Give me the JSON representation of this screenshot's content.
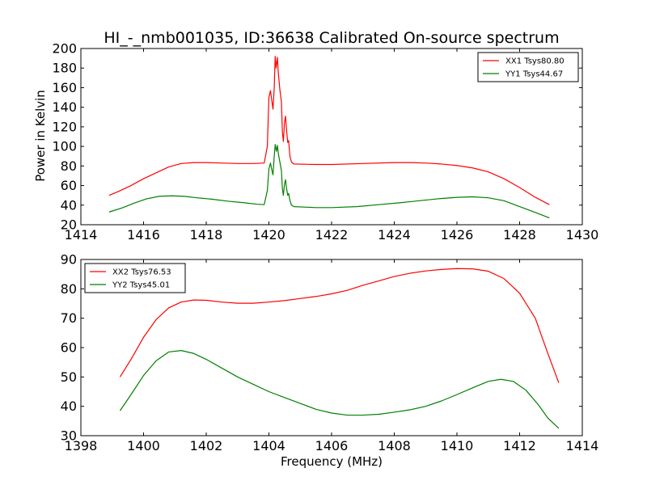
{
  "chart_data": [
    {
      "type": "line",
      "title": "HI_-_nmb001035, ID:36638 Calibrated On-source spectrum",
      "xlabel": "",
      "ylabel": "Power in Kelvin",
      "xlim": [
        1414,
        1430
      ],
      "ylim": [
        20,
        200
      ],
      "xticks": [
        "1414",
        "1416",
        "1418",
        "1420",
        "1422",
        "1424",
        "1426",
        "1428",
        "1430"
      ],
      "yticks": [
        "20",
        "40",
        "60",
        "80",
        "100",
        "120",
        "140",
        "160",
        "180",
        "200"
      ],
      "grid": false,
      "legend_position": "top-right",
      "series": [
        {
          "name": "XX1 Tsys80.80",
          "color": "#ff0000",
          "points": [
            [
              1414.9,
              50
            ],
            [
              1415.2,
              54
            ],
            [
              1415.6,
              60
            ],
            [
              1416.0,
              67
            ],
            [
              1416.4,
              73
            ],
            [
              1416.8,
              79
            ],
            [
              1417.2,
              82.5
            ],
            [
              1417.6,
              83.5
            ],
            [
              1418.0,
              83.5
            ],
            [
              1418.5,
              83
            ],
            [
              1419.0,
              82.5
            ],
            [
              1419.5,
              82.5
            ],
            [
              1419.85,
              83
            ],
            [
              1419.95,
              100
            ],
            [
              1420.0,
              150
            ],
            [
              1420.05,
              157
            ],
            [
              1420.1,
              145
            ],
            [
              1420.13,
              138
            ],
            [
              1420.17,
              160
            ],
            [
              1420.2,
              192
            ],
            [
              1420.23,
              180
            ],
            [
              1420.27,
              191
            ],
            [
              1420.3,
              175
            ],
            [
              1420.35,
              158
            ],
            [
              1420.4,
              145
            ],
            [
              1420.43,
              115
            ],
            [
              1420.46,
              105
            ],
            [
              1420.5,
              125
            ],
            [
              1420.53,
              131
            ],
            [
              1420.56,
              118
            ],
            [
              1420.6,
              104
            ],
            [
              1420.63,
              106
            ],
            [
              1420.67,
              90
            ],
            [
              1420.72,
              84
            ],
            [
              1420.8,
              82
            ],
            [
              1421.5,
              81.5
            ],
            [
              1422.0,
              81.5
            ],
            [
              1423.0,
              82.5
            ],
            [
              1424.0,
              83.5
            ],
            [
              1424.5,
              83.5
            ],
            [
              1425.0,
              83
            ],
            [
              1425.5,
              82
            ],
            [
              1426.0,
              80.5
            ],
            [
              1426.5,
              78
            ],
            [
              1427.0,
              74
            ],
            [
              1427.5,
              67
            ],
            [
              1428.0,
              58
            ],
            [
              1428.5,
              48
            ],
            [
              1428.95,
              40.5
            ]
          ]
        },
        {
          "name": "YY1 Tsys44.67",
          "color": "#008000",
          "points": [
            [
              1414.9,
              33
            ],
            [
              1415.3,
              37
            ],
            [
              1415.7,
              42
            ],
            [
              1416.1,
              46.5
            ],
            [
              1416.5,
              49
            ],
            [
              1416.9,
              49.5
            ],
            [
              1417.3,
              49
            ],
            [
              1417.7,
              47.5
            ],
            [
              1418.2,
              46
            ],
            [
              1418.7,
              44
            ],
            [
              1419.2,
              42.5
            ],
            [
              1419.6,
              41
            ],
            [
              1419.85,
              40.5
            ],
            [
              1419.95,
              55
            ],
            [
              1420.0,
              77
            ],
            [
              1420.05,
              83
            ],
            [
              1420.1,
              75
            ],
            [
              1420.13,
              71
            ],
            [
              1420.17,
              90
            ],
            [
              1420.2,
              102
            ],
            [
              1420.24,
              95
            ],
            [
              1420.27,
              101
            ],
            [
              1420.3,
              93
            ],
            [
              1420.35,
              84
            ],
            [
              1420.4,
              75
            ],
            [
              1420.43,
              57
            ],
            [
              1420.46,
              50
            ],
            [
              1420.5,
              62
            ],
            [
              1420.53,
              66
            ],
            [
              1420.56,
              58
            ],
            [
              1420.6,
              50
            ],
            [
              1420.63,
              52
            ],
            [
              1420.67,
              45
            ],
            [
              1420.72,
              40
            ],
            [
              1420.8,
              38.5
            ],
            [
              1421.5,
              37.5
            ],
            [
              1422.0,
              37.5
            ],
            [
              1422.8,
              38.5
            ],
            [
              1423.5,
              40.5
            ],
            [
              1424.2,
              42.5
            ],
            [
              1424.8,
              44.5
            ],
            [
              1425.4,
              46.5
            ],
            [
              1426.0,
              48
            ],
            [
              1426.5,
              48.5
            ],
            [
              1427.0,
              47.5
            ],
            [
              1427.5,
              44.5
            ],
            [
              1428.0,
              38.5
            ],
            [
              1428.5,
              32.5
            ],
            [
              1428.95,
              27
            ]
          ]
        }
      ]
    },
    {
      "type": "line",
      "title": "",
      "xlabel": "Frequency (MHz)",
      "ylabel": "",
      "xlim": [
        1398,
        1414
      ],
      "ylim": [
        30,
        90
      ],
      "xticks": [
        "1398",
        "1400",
        "1402",
        "1404",
        "1406",
        "1408",
        "1410",
        "1412",
        "1414"
      ],
      "yticks": [
        "30",
        "40",
        "50",
        "60",
        "70",
        "80",
        "90"
      ],
      "grid": false,
      "legend_position": "top-left",
      "series": [
        {
          "name": "XX2 Tsys76.53",
          "color": "#ff0000",
          "points": [
            [
              1399.25,
              50
            ],
            [
              1399.6,
              56
            ],
            [
              1400.0,
              63.5
            ],
            [
              1400.4,
              69.5
            ],
            [
              1400.8,
              73.5
            ],
            [
              1401.2,
              75.5
            ],
            [
              1401.6,
              76.2
            ],
            [
              1402.0,
              76.1
            ],
            [
              1402.5,
              75.5
            ],
            [
              1403.0,
              75.1
            ],
            [
              1403.5,
              75.1
            ],
            [
              1404.0,
              75.5
            ],
            [
              1404.5,
              76
            ],
            [
              1405.0,
              76.7
            ],
            [
              1405.5,
              77.4
            ],
            [
              1406.0,
              78.3
            ],
            [
              1406.5,
              79.5
            ],
            [
              1407.0,
              81.2
            ],
            [
              1407.5,
              82.7
            ],
            [
              1408.0,
              84.2
            ],
            [
              1408.5,
              85.3
            ],
            [
              1409.0,
              86.1
            ],
            [
              1409.5,
              86.6
            ],
            [
              1410.0,
              86.9
            ],
            [
              1410.5,
              86.8
            ],
            [
              1411.0,
              86
            ],
            [
              1411.5,
              83.5
            ],
            [
              1412.0,
              78.5
            ],
            [
              1412.5,
              70
            ],
            [
              1412.9,
              58
            ],
            [
              1413.25,
              48
            ]
          ]
        },
        {
          "name": "YY2 Tsys45.01",
          "color": "#008000",
          "points": [
            [
              1399.25,
              38.5
            ],
            [
              1399.6,
              44
            ],
            [
              1400.0,
              50.5
            ],
            [
              1400.4,
              55.5
            ],
            [
              1400.8,
              58.5
            ],
            [
              1401.2,
              59
            ],
            [
              1401.6,
              58
            ],
            [
              1402.0,
              56
            ],
            [
              1402.5,
              53
            ],
            [
              1403.0,
              50
            ],
            [
              1403.5,
              47.5
            ],
            [
              1404.0,
              45
            ],
            [
              1404.5,
              43
            ],
            [
              1405.0,
              41
            ],
            [
              1405.5,
              39
            ],
            [
              1406.0,
              37.7
            ],
            [
              1406.5,
              37
            ],
            [
              1407.0,
              37
            ],
            [
              1407.5,
              37.3
            ],
            [
              1408.0,
              38
            ],
            [
              1408.5,
              38.8
            ],
            [
              1409.0,
              40
            ],
            [
              1409.5,
              41.8
            ],
            [
              1410.0,
              44
            ],
            [
              1410.5,
              46.3
            ],
            [
              1411.0,
              48.5
            ],
            [
              1411.4,
              49.2
            ],
            [
              1411.8,
              48.5
            ],
            [
              1412.2,
              45.5
            ],
            [
              1412.6,
              40.5
            ],
            [
              1412.9,
              36
            ],
            [
              1413.25,
              32.5
            ]
          ]
        }
      ]
    }
  ]
}
